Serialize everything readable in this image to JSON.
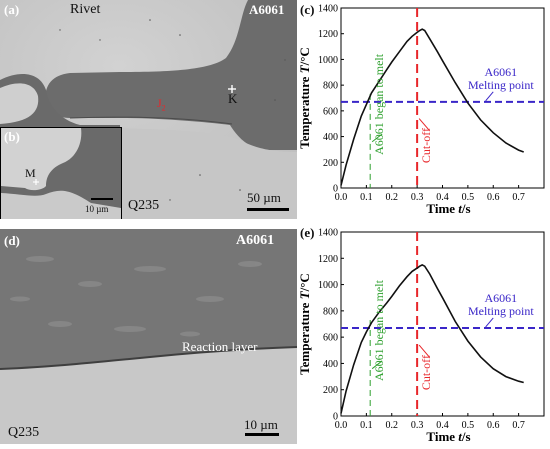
{
  "figure": {
    "panel_a": {
      "letter": "(a)",
      "labels": {
        "rivet": "Rivet",
        "alloy": "A6061",
        "steel": "Q235",
        "interface": "J",
        "interface_sub": "2",
        "point_k": "K",
        "scale": "50 µm"
      }
    },
    "panel_b": {
      "letter": "(b)",
      "labels": {
        "point_m": "M",
        "scale": "10 µm"
      }
    },
    "panel_d": {
      "letter": "(d)",
      "labels": {
        "alloy": "A6061",
        "steel": "Q235",
        "layer": "Reaction layer",
        "scale": "10 µm"
      }
    },
    "colors": {
      "curve": "#111111",
      "cutoff": "#e8262a",
      "melting": "#3a26c8",
      "began_melt": "#2ea02e",
      "rivet_gray": "#c8c8c8",
      "alloy_gray": "#6e6e6e"
    }
  },
  "chart_data": [
    {
      "panel": "(c)",
      "type": "line",
      "xlabel": "Time",
      "xlabel_var": "t",
      "xlabel_unit": "/s",
      "ylabel": "Temperature",
      "ylabel_var": "T",
      "ylabel_unit": "/°C",
      "xlim": [
        0,
        0.8
      ],
      "ylim": [
        0,
        1400
      ],
      "xticks": [
        "0.0",
        "0.1",
        "0.2",
        "0.3",
        "0.4",
        "0.5",
        "0.6",
        "0.7"
      ],
      "yticks": [
        "0",
        "200",
        "400",
        "600",
        "800",
        "1000",
        "1200",
        "1400"
      ],
      "x": [
        0.0,
        0.02,
        0.05,
        0.08,
        0.1,
        0.12,
        0.15,
        0.18,
        0.2,
        0.23,
        0.26,
        0.28,
        0.3,
        0.31,
        0.32,
        0.33,
        0.35,
        0.38,
        0.4,
        0.45,
        0.5,
        0.55,
        0.6,
        0.65,
        0.7,
        0.72
      ],
      "y": [
        20,
        180,
        380,
        560,
        650,
        740,
        830,
        920,
        980,
        1060,
        1140,
        1180,
        1210,
        1225,
        1235,
        1225,
        1160,
        1060,
        990,
        820,
        660,
        530,
        430,
        350,
        295,
        280
      ],
      "cutoff_x": 0.3,
      "melting_point_y": 670,
      "began_melt_x": 0.115,
      "annotations": {
        "melting_label_1": "A6061",
        "melting_label_2": "Melting point",
        "cutoff_label": "Cut-off",
        "began_melt_label": "A6061 began to melt"
      }
    },
    {
      "panel": "(e)",
      "type": "line",
      "xlabel": "Time",
      "xlabel_var": "t",
      "xlabel_unit": "/s",
      "ylabel": "Temperature",
      "ylabel_var": "T",
      "ylabel_unit": "/°C",
      "xlim": [
        0,
        0.8
      ],
      "ylim": [
        0,
        1400
      ],
      "xticks": [
        "0.0",
        "0.1",
        "0.2",
        "0.3",
        "0.4",
        "0.5",
        "0.6",
        "0.7"
      ],
      "yticks": [
        "0",
        "200",
        "400",
        "600",
        "800",
        "1000",
        "1200",
        "1400"
      ],
      "x": [
        0.0,
        0.02,
        0.05,
        0.08,
        0.1,
        0.12,
        0.15,
        0.18,
        0.2,
        0.23,
        0.26,
        0.28,
        0.3,
        0.31,
        0.32,
        0.33,
        0.35,
        0.38,
        0.4,
        0.45,
        0.5,
        0.55,
        0.6,
        0.65,
        0.7,
        0.72
      ],
      "y": [
        20,
        190,
        390,
        560,
        640,
        710,
        790,
        860,
        910,
        990,
        1060,
        1100,
        1125,
        1140,
        1150,
        1140,
        1080,
        970,
        900,
        720,
        570,
        450,
        360,
        300,
        265,
        255
      ],
      "cutoff_x": 0.3,
      "melting_point_y": 670,
      "began_melt_x": 0.115,
      "annotations": {
        "melting_label_1": "A6061",
        "melting_label_2": "Melting point",
        "cutoff_label": "Cut-off",
        "began_melt_label": "A6061 began to melt"
      }
    }
  ]
}
